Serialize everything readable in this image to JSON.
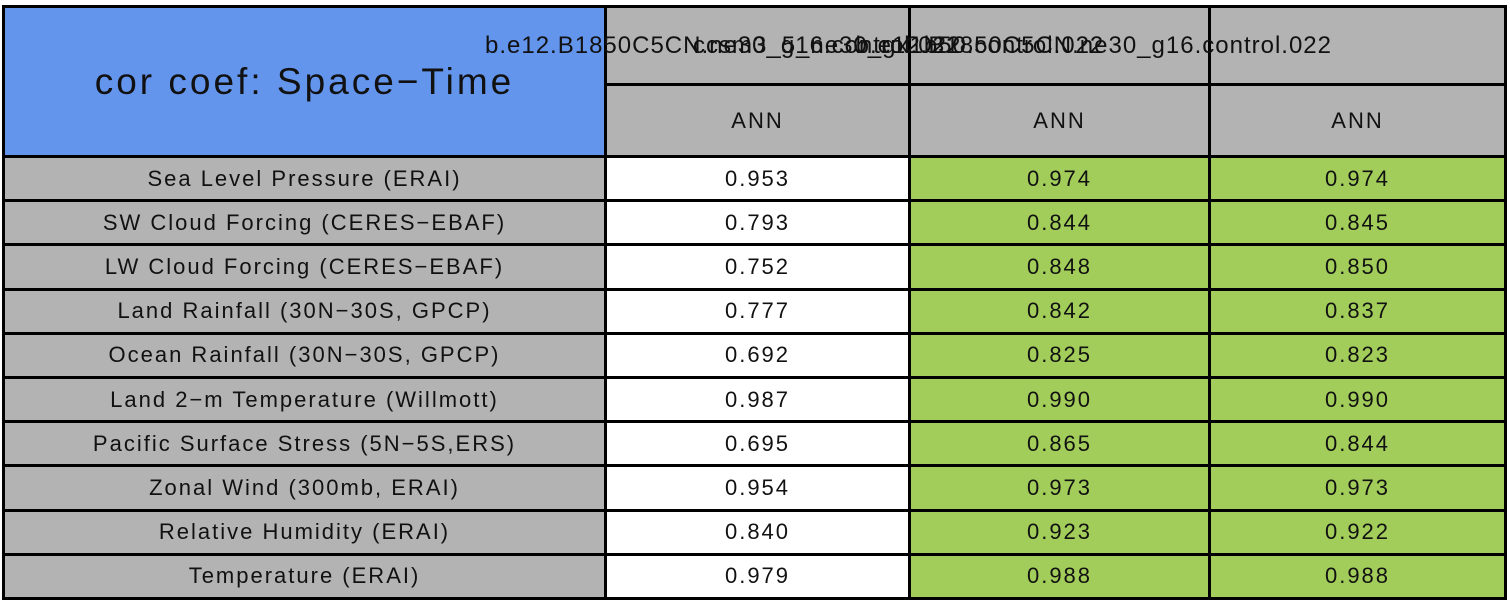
{
  "title": "cor coef: Space−Time",
  "header": {
    "case_names": [
      "b.e12.B1850C5CN.ne30_g16.control.022",
      "ccsm3_5_ne30_gx1b50.control.022",
      "b.e12.B1850C5CN.ne30_g16.control.022"
    ],
    "season_labels": [
      "ANN",
      "ANN",
      "ANN"
    ]
  },
  "table": {
    "rows": [
      {
        "label": "Sea Level Pressure (ERAI)",
        "values": [
          "0.953",
          "0.974",
          "0.974"
        ]
      },
      {
        "label": "SW Cloud Forcing (CERES−EBAF)",
        "values": [
          "0.793",
          "0.844",
          "0.845"
        ]
      },
      {
        "label": "LW Cloud Forcing (CERES−EBAF)",
        "values": [
          "0.752",
          "0.848",
          "0.850"
        ]
      },
      {
        "label": "Land Rainfall (30N−30S, GPCP)",
        "values": [
          "0.777",
          "0.842",
          "0.837"
        ]
      },
      {
        "label": "Ocean Rainfall (30N−30S, GPCP)",
        "values": [
          "0.692",
          "0.825",
          "0.823"
        ]
      },
      {
        "label": "Land 2−m Temperature (Willmott)",
        "values": [
          "0.987",
          "0.990",
          "0.990"
        ]
      },
      {
        "label": "Pacific Surface Stress (5N−5S,ERS)",
        "values": [
          "0.695",
          "0.865",
          "0.844"
        ]
      },
      {
        "label": "Zonal Wind (300mb, ERAI)",
        "values": [
          "0.954",
          "0.973",
          "0.973"
        ]
      },
      {
        "label": "Relative Humidity (ERAI)",
        "values": [
          "0.840",
          "0.923",
          "0.922"
        ]
      },
      {
        "label": "Temperature (ERAI)",
        "values": [
          "0.979",
          "0.988",
          "0.988"
        ]
      }
    ]
  },
  "colors": {
    "title_box_blue": "#6495ed",
    "header_gray": "#b3b3b3",
    "highlight_green": "#a2cd5a",
    "plain_cell_white": "#ffffff",
    "border_black": "#000000"
  },
  "chart_data": {
    "type": "table",
    "title": "cor coef: Space-Time",
    "columns": [
      "ANN",
      "ANN",
      "ANN"
    ],
    "row_labels": [
      "Sea Level Pressure (ERAI)",
      "SW Cloud Forcing (CERES-EBAF)",
      "LW Cloud Forcing (CERES-EBAF)",
      "Land Rainfall (30N-30S, GPCP)",
      "Ocean Rainfall (30N-30S, GPCP)",
      "Land 2-m Temperature (Willmott)",
      "Pacific Surface Stress (5N-5S,ERS)",
      "Zonal Wind (300mb, ERAI)",
      "Relative Humidity (ERAI)",
      "Temperature (ERAI)"
    ],
    "values": [
      [
        0.953,
        0.974,
        0.974
      ],
      [
        0.793,
        0.844,
        0.845
      ],
      [
        0.752,
        0.848,
        0.85
      ],
      [
        0.777,
        0.842,
        0.837
      ],
      [
        0.692,
        0.825,
        0.823
      ],
      [
        0.987,
        0.99,
        0.99
      ],
      [
        0.695,
        0.865,
        0.844
      ],
      [
        0.954,
        0.973,
        0.973
      ],
      [
        0.84,
        0.923,
        0.922
      ],
      [
        0.979,
        0.988,
        0.988
      ]
    ],
    "highlighted_columns_green": [
      1,
      2
    ],
    "legend_position": "none",
    "grid": true
  }
}
